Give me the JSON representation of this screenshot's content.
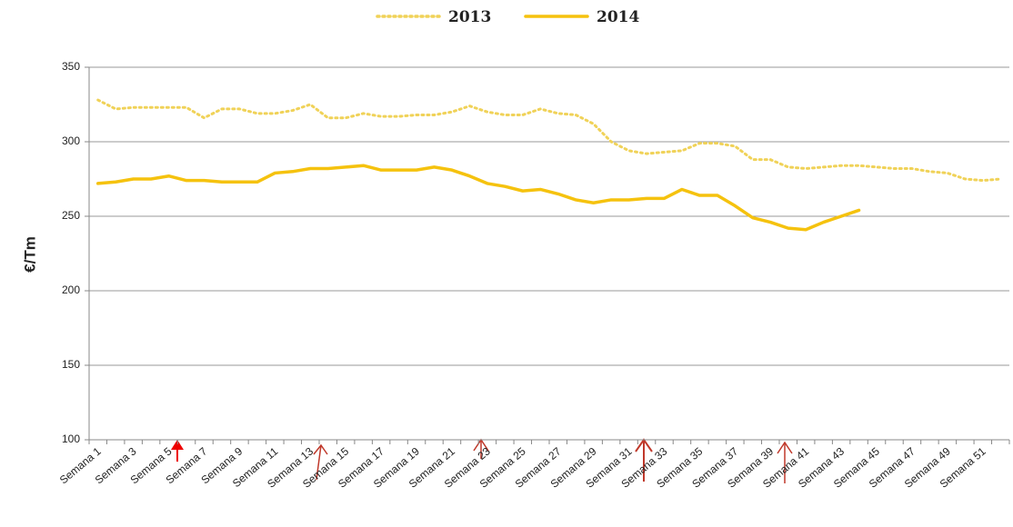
{
  "chart_data": {
    "type": "line",
    "y_label": "€/Tm",
    "categories": [
      "Semana 1",
      null,
      "Semana 3",
      null,
      "Semana 5",
      null,
      "Semana 7",
      null,
      "Semana 9",
      null,
      "Semana 11",
      null,
      "Semana 13",
      null,
      "Semana 15",
      null,
      "Semana 17",
      null,
      "Semana 19",
      null,
      "Semana 21",
      null,
      "Semana 23",
      null,
      "Semana 25",
      null,
      "Semana 27",
      null,
      "Semana 29",
      null,
      "Semana 31",
      null,
      "Semana 33",
      null,
      "Semana 35",
      null,
      "Semana 37",
      null,
      "Semana 39",
      null,
      "Semana 41",
      null,
      "Semana 43",
      null,
      "Semana 45",
      null,
      "Semana 47",
      null,
      "Semana 49",
      null,
      "Semana 51",
      null
    ],
    "series": [
      {
        "name": "2013",
        "color": "#f0d258",
        "line_style": "dotted",
        "values": [
          328,
          322,
          323,
          323,
          323,
          323,
          316,
          322,
          322,
          319,
          319,
          321,
          325,
          316,
          316,
          319,
          317,
          317,
          318,
          318,
          320,
          324,
          320,
          318,
          318,
          322,
          319,
          318,
          312,
          300,
          294,
          292,
          293,
          294,
          299,
          299,
          297,
          288,
          288,
          283,
          282,
          283,
          284,
          284,
          283,
          282,
          282,
          280,
          279,
          275,
          274,
          275
        ]
      },
      {
        "name": "2014",
        "color": "#f5c20e",
        "line_style": "solid",
        "values": [
          272,
          273,
          275,
          275,
          277,
          274,
          274,
          273,
          273,
          273,
          279,
          280,
          282,
          282,
          283,
          284,
          281,
          281,
          281,
          283,
          281,
          277,
          272,
          270,
          267,
          268,
          265,
          261,
          259,
          261,
          261,
          262,
          262,
          268,
          264,
          264,
          257,
          249,
          246,
          242,
          241,
          246,
          250,
          254,
          null,
          null,
          null,
          null,
          null,
          null,
          null,
          null
        ]
      }
    ],
    "ylim": [
      100,
      350
    ],
    "yticks": [
      100,
      150,
      200,
      250,
      300,
      350
    ],
    "grid": true,
    "legend": "top"
  }
}
